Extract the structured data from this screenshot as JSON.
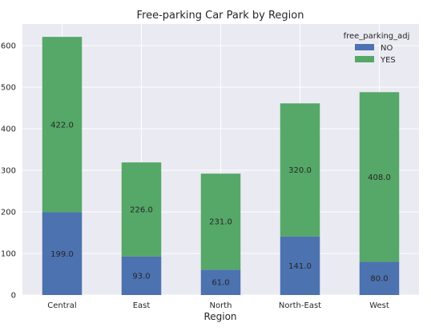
{
  "chart_data": {
    "type": "bar",
    "stacked": true,
    "title": "Free-parking Car Park by Region",
    "xlabel": "Region",
    "ylabel": "",
    "categories": [
      "Central",
      "East",
      "North",
      "North-East",
      "West"
    ],
    "series": [
      {
        "name": "NO",
        "values": [
          199.0,
          93.0,
          61.0,
          141.0,
          80.0
        ],
        "color": "#4c72b0"
      },
      {
        "name": "YES",
        "values": [
          422.0,
          226.0,
          231.0,
          320.0,
          408.0
        ],
        "color": "#55a868"
      }
    ],
    "data_labels": [
      [
        "199.0",
        "93.0",
        "61.0",
        "141.0",
        "80.0"
      ],
      [
        "422.0",
        "226.0",
        "231.0",
        "320.0",
        "408.0"
      ]
    ],
    "yticks": [
      0,
      100,
      200,
      300,
      400,
      500,
      600
    ],
    "ytick_labels": [
      "0",
      "100",
      "200",
      "300",
      "400",
      "500",
      "600"
    ],
    "ylim": [
      0,
      652
    ],
    "grid": true,
    "legend": {
      "title": "free_parking_adj",
      "placement": "top-right"
    },
    "colors": {
      "plot_background": "#eaeaf2",
      "grid": "#ffffff"
    }
  }
}
